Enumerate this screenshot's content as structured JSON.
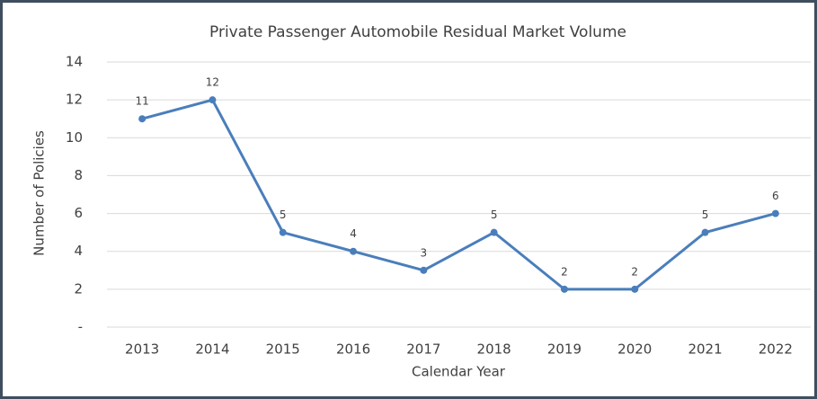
{
  "chart_data": {
    "type": "line",
    "title": "Private Passenger Automobile Residual Market Volume",
    "x_label": "Calendar Year",
    "y_label": "Number of Policies",
    "categories": [
      "2013",
      "2014",
      "2015",
      "2016",
      "2017",
      "2018",
      "2019",
      "2020",
      "2021",
      "2022"
    ],
    "values": [
      11,
      12,
      5,
      4,
      3,
      5,
      2,
      2,
      5,
      6
    ],
    "color": "#4a7ebb",
    "ylim": [
      0,
      14
    ],
    "yticks": [
      {
        "value": 0,
        "label": "-"
      },
      2,
      4,
      6,
      8,
      10,
      12,
      14
    ],
    "grid": true
  }
}
